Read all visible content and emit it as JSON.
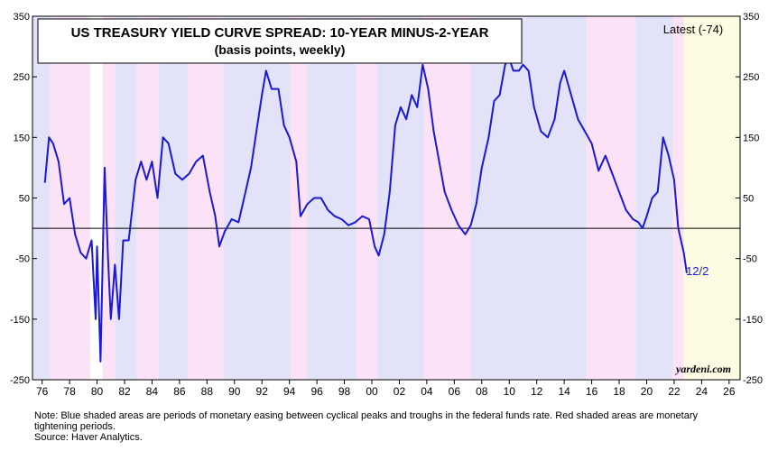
{
  "chart_data": {
    "type": "line",
    "title": "US TREASURY YIELD CURVE SPREAD: 10-YEAR MINUS-2-YEAR",
    "subtitle": "(basis points, weekly)",
    "annotation_latest": "Latest (-74)",
    "annotation_date": "12/2",
    "watermark": "yardeni.com",
    "note": "Note: Blue shaded areas are periods of monetary easing between cyclical peaks and troughs in the federal funds rate. Red shaded areas are monetary tightening periods.",
    "source": "Source: Haver Analytics.",
    "xlim": [
      1975.3,
      2026.8
    ],
    "ylim": [
      -250,
      350
    ],
    "yticks": [
      -250,
      -150,
      -50,
      50,
      150,
      250,
      350
    ],
    "xticks": [
      {
        "value": 1976,
        "label": "76"
      },
      {
        "value": 1978,
        "label": "78"
      },
      {
        "value": 1980,
        "label": "80"
      },
      {
        "value": 1982,
        "label": "82"
      },
      {
        "value": 1984,
        "label": "84"
      },
      {
        "value": 1986,
        "label": "86"
      },
      {
        "value": 1988,
        "label": "88"
      },
      {
        "value": 1990,
        "label": "90"
      },
      {
        "value": 1992,
        "label": "92"
      },
      {
        "value": 1994,
        "label": "94"
      },
      {
        "value": 1996,
        "label": "96"
      },
      {
        "value": 1998,
        "label": "98"
      },
      {
        "value": 2000,
        "label": "00"
      },
      {
        "value": 2002,
        "label": "02"
      },
      {
        "value": 2004,
        "label": "04"
      },
      {
        "value": 2006,
        "label": "06"
      },
      {
        "value": 2008,
        "label": "08"
      },
      {
        "value": 2010,
        "label": "10"
      },
      {
        "value": 2012,
        "label": "12"
      },
      {
        "value": 2014,
        "label": "14"
      },
      {
        "value": 2016,
        "label": "16"
      },
      {
        "value": 2018,
        "label": "18"
      },
      {
        "value": 2020,
        "label": "20"
      },
      {
        "value": 2022,
        "label": "22"
      },
      {
        "value": 2024,
        "label": "24"
      },
      {
        "value": 2026,
        "label": "26"
      }
    ],
    "shading": [
      {
        "start": 1975.3,
        "end": 1976.6,
        "color": "#e2e2f8"
      },
      {
        "start": 1976.6,
        "end": 1979.5,
        "color": "#fce2f6"
      },
      {
        "start": 1980.4,
        "end": 1981.3,
        "color": "#fce2f6"
      },
      {
        "start": 1981.3,
        "end": 1982.9,
        "color": "#e2e2f8"
      },
      {
        "start": 1982.9,
        "end": 1984.5,
        "color": "#fce2f6"
      },
      {
        "start": 1984.5,
        "end": 1986.6,
        "color": "#e2e2f8"
      },
      {
        "start": 1986.6,
        "end": 1989.2,
        "color": "#fce2f6"
      },
      {
        "start": 1989.2,
        "end": 1994.1,
        "color": "#e2e2f8"
      },
      {
        "start": 1994.1,
        "end": 1995.3,
        "color": "#fce2f6"
      },
      {
        "start": 1995.3,
        "end": 1998.9,
        "color": "#e2e2f8"
      },
      {
        "start": 1998.9,
        "end": 2000.4,
        "color": "#fce2f6"
      },
      {
        "start": 2000.4,
        "end": 2003.8,
        "color": "#e2e2f8"
      },
      {
        "start": 2003.8,
        "end": 2007.2,
        "color": "#fce2f6"
      },
      {
        "start": 2007.2,
        "end": 2015.6,
        "color": "#e2e2f8"
      },
      {
        "start": 2015.6,
        "end": 2019.2,
        "color": "#fce2f6"
      },
      {
        "start": 2019.2,
        "end": 2021.9,
        "color": "#e2e2f8"
      },
      {
        "start": 2021.9,
        "end": 2022.7,
        "color": "#fce2f6"
      },
      {
        "start": 2022.7,
        "end": 2026.8,
        "color": "#fdfce2"
      }
    ],
    "series": [
      {
        "color": "#1a1ad6",
        "x": [
          1976.2,
          1976.5,
          1976.8,
          1977.2,
          1977.6,
          1978.0,
          1978.4,
          1978.8,
          1979.2,
          1979.6,
          1979.9,
          1980.0,
          1980.25,
          1980.55,
          1980.8,
          1981.0,
          1981.3,
          1981.6,
          1981.9,
          1982.3,
          1982.8,
          1983.2,
          1983.6,
          1984.0,
          1984.4,
          1984.8,
          1985.2,
          1985.7,
          1986.2,
          1986.7,
          1987.2,
          1987.7,
          1988.2,
          1988.6,
          1988.9,
          1989.3,
          1989.8,
          1990.3,
          1990.8,
          1991.2,
          1991.6,
          1992.0,
          1992.3,
          1992.7,
          1993.2,
          1993.6,
          1994.0,
          1994.5,
          1994.8,
          1995.3,
          1995.8,
          1996.3,
          1996.8,
          1997.3,
          1997.8,
          1998.3,
          1998.8,
          1999.3,
          1999.8,
          2000.2,
          2000.5,
          2000.9,
          2001.3,
          2001.7,
          2002.1,
          2002.5,
          2002.9,
          2003.3,
          2003.7,
          2004.1,
          2004.5,
          2004.9,
          2005.3,
          2005.8,
          2006.3,
          2006.8,
          2007.2,
          2007.6,
          2008.0,
          2008.5,
          2008.9,
          2009.3,
          2009.7,
          2010.0,
          2010.3,
          2010.7,
          2011.0,
          2011.4,
          2011.8,
          2012.3,
          2012.8,
          2013.3,
          2013.7,
          2014.0,
          2014.5,
          2015.0,
          2015.5,
          2016.0,
          2016.5,
          2017.0,
          2017.5,
          2018.0,
          2018.5,
          2019.0,
          2019.4,
          2019.7,
          2020.0,
          2020.4,
          2020.8,
          2021.2,
          2021.6,
          2022.0,
          2022.3,
          2022.5,
          2022.7,
          2022.92
        ],
        "values": [
          75,
          150,
          140,
          110,
          40,
          50,
          -10,
          -40,
          -50,
          -20,
          -150,
          -30,
          -220,
          100,
          -50,
          -150,
          -60,
          -150,
          -20,
          -20,
          80,
          110,
          80,
          110,
          50,
          150,
          140,
          90,
          80,
          90,
          110,
          120,
          60,
          20,
          -30,
          -5,
          15,
          10,
          60,
          100,
          160,
          220,
          260,
          230,
          230,
          170,
          150,
          110,
          20,
          40,
          50,
          50,
          30,
          20,
          15,
          5,
          10,
          20,
          15,
          -30,
          -45,
          -10,
          60,
          170,
          200,
          180,
          220,
          200,
          270,
          230,
          160,
          110,
          60,
          30,
          5,
          -10,
          5,
          40,
          100,
          150,
          210,
          220,
          270,
          280,
          260,
          260,
          270,
          260,
          200,
          160,
          150,
          180,
          240,
          260,
          220,
          180,
          160,
          140,
          95,
          120,
          90,
          60,
          30,
          15,
          10,
          0,
          20,
          50,
          60,
          150,
          120,
          80,
          0,
          -20,
          -40,
          -74
        ]
      }
    ]
  }
}
